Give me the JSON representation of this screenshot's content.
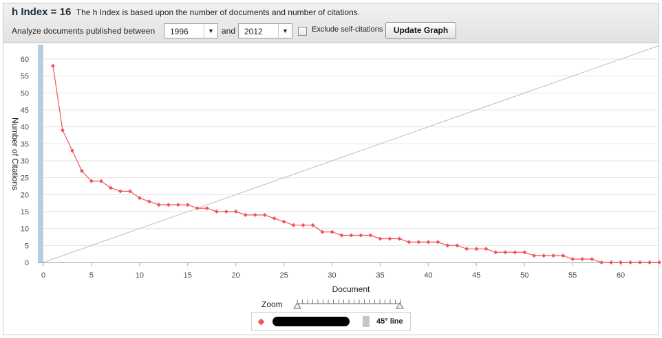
{
  "header": {
    "h_index_label": "h Index = 16",
    "description": "The h Index is based upon the number of documents and number of citations.",
    "analyze_label": "Analyze documents published between",
    "start_year": "1996",
    "and_label": "and",
    "end_year": "2012",
    "exclude_label": "Exclude self-citations",
    "exclude_checked": false,
    "update_button": "Update Graph",
    "dropdown_arrow": "▼"
  },
  "legend": {
    "series_label": "[redacted]",
    "line_label": "45° line",
    "zoom_label": "Zoom"
  },
  "colors": {
    "series": "#f0545a",
    "diagonal": "#bdbdbd",
    "grid": "#e3e3e3",
    "axis_text": "#3a4a5a",
    "y_bar": "#b7cde0"
  },
  "chart_data": {
    "type": "line",
    "xlabel": "Document",
    "ylabel": "Number of Citations",
    "xlim": [
      0,
      64
    ],
    "ylim": [
      0,
      60
    ],
    "x_ticks": [
      0,
      5,
      10,
      15,
      20,
      25,
      30,
      35,
      40,
      45,
      50,
      55,
      60
    ],
    "y_ticks": [
      0,
      5,
      10,
      15,
      20,
      25,
      30,
      35,
      40,
      45,
      50,
      55,
      60
    ],
    "grid": "horizontal",
    "series": [
      {
        "name": "[redacted]",
        "x": [
          1,
          2,
          3,
          4,
          5,
          6,
          7,
          8,
          9,
          10,
          11,
          12,
          13,
          14,
          15,
          16,
          17,
          18,
          19,
          20,
          21,
          22,
          23,
          24,
          25,
          26,
          27,
          28,
          29,
          30,
          31,
          32,
          33,
          34,
          35,
          36,
          37,
          38,
          39,
          40,
          41,
          42,
          43,
          44,
          45,
          46,
          47,
          48,
          49,
          50,
          51,
          52,
          53,
          54,
          55,
          56,
          57,
          58,
          59,
          60,
          61,
          62,
          63,
          64
        ],
        "y": [
          58,
          39,
          33,
          27,
          24,
          24,
          22,
          21,
          21,
          19,
          18,
          17,
          17,
          17,
          17,
          16,
          16,
          15,
          15,
          15,
          14,
          14,
          14,
          13,
          12,
          11,
          11,
          11,
          9,
          9,
          8,
          8,
          8,
          8,
          7,
          7,
          7,
          6,
          6,
          6,
          6,
          5,
          5,
          4,
          4,
          4,
          3,
          3,
          3,
          3,
          2,
          2,
          2,
          2,
          1,
          1,
          1,
          0,
          0,
          0,
          0,
          0,
          0,
          0
        ]
      },
      {
        "name": "45° line",
        "x": [
          0,
          64
        ],
        "y": [
          0,
          64
        ]
      }
    ]
  }
}
